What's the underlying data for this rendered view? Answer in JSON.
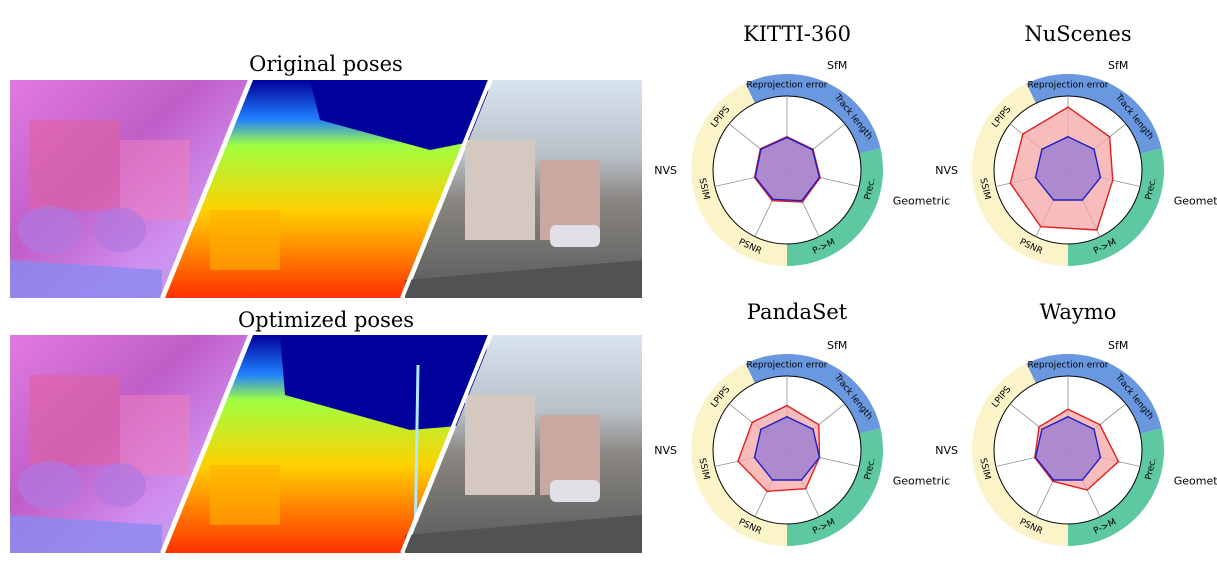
{
  "left_panel": {
    "top_title": "Original poses",
    "bottom_title": "Optimized poses",
    "strip_segments": [
      "surface normals",
      "depth map",
      "rendered RGB"
    ]
  },
  "colors": {
    "sfm_band": "#6a98e0",
    "geometric_band": "#5ec8a0",
    "nvs_band": "#fbf4c8",
    "original_line": "#e02020",
    "original_fill": "#f6a6a6",
    "optimized_line": "#2020c0",
    "optimized_fill": "#a080d0"
  },
  "chart_data": [
    {
      "type": "radar",
      "title": "KITTI-360",
      "axes": [
        "Reprojection error",
        "Track length",
        "Prec.",
        "P->M",
        "PSNR",
        "SSIM",
        "LPIPS"
      ],
      "groups": [
        "SfM",
        "Geometric",
        "NVS"
      ],
      "series": [
        {
          "values": [
            0.45,
            0.45,
            0.46,
            0.48,
            0.46,
            0.45,
            0.46
          ]
        },
        {
          "values": [
            0.44,
            0.44,
            0.45,
            0.46,
            0.44,
            0.44,
            0.45
          ]
        }
      ]
    },
    {
      "type": "radar",
      "title": "NuScenes",
      "axes": [
        "Reprojection error",
        "Track length",
        "Prec.",
        "P->M",
        "PSNR",
        "SSIM",
        "LPIPS"
      ],
      "groups": [
        "SfM",
        "Geometric",
        "NVS"
      ],
      "series": [
        {
          "values": [
            0.85,
            0.72,
            0.62,
            0.9,
            0.85,
            0.8,
            0.78
          ]
        },
        {
          "values": [
            0.45,
            0.45,
            0.45,
            0.45,
            0.45,
            0.45,
            0.45
          ]
        }
      ]
    },
    {
      "type": "radar",
      "title": "PandaSet",
      "axes": [
        "Reprojection error",
        "Track length",
        "Prec.",
        "P->M",
        "PSNR",
        "SSIM",
        "LPIPS"
      ],
      "groups": [
        "SfM",
        "Geometric",
        "NVS"
      ],
      "series": [
        {
          "values": [
            0.6,
            0.55,
            0.45,
            0.58,
            0.62,
            0.68,
            0.6
          ]
        },
        {
          "values": [
            0.45,
            0.45,
            0.45,
            0.45,
            0.45,
            0.45,
            0.45
          ]
        }
      ]
    },
    {
      "type": "radar",
      "title": "Waymo",
      "axes": [
        "Reprojection error",
        "Track length",
        "Prec.",
        "P->M",
        "PSNR",
        "SSIM",
        "LPIPS"
      ],
      "groups": [
        "SfM",
        "Geometric",
        "NVS"
      ],
      "series": [
        {
          "values": [
            0.55,
            0.55,
            0.7,
            0.6,
            0.47,
            0.46,
            0.5
          ]
        },
        {
          "values": [
            0.45,
            0.45,
            0.45,
            0.45,
            0.45,
            0.45,
            0.45
          ]
        }
      ]
    }
  ]
}
